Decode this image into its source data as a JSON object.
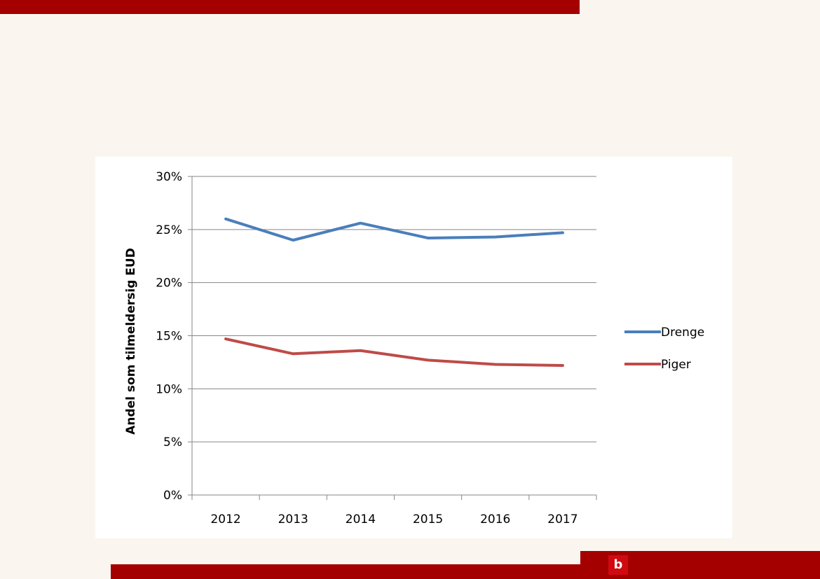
{
  "logo": {
    "text": "b"
  },
  "colors": {
    "bar": "#a50000",
    "logo": "#d10a11",
    "background": "#faf5ef"
  },
  "chart_data": {
    "type": "line",
    "title": "",
    "xlabel": "",
    "ylabel": "Andel som tilmeldersig EUD",
    "categories": [
      "2012",
      "2013",
      "2014",
      "2015",
      "2016",
      "2017"
    ],
    "ylim": [
      0,
      30
    ],
    "yticks": [
      "0%",
      "5%",
      "10%",
      "15%",
      "20%",
      "25%",
      "30%"
    ],
    "grid": true,
    "legend": "right",
    "series": [
      {
        "name": "Drenge",
        "color": "#4a7ebb",
        "values": [
          26.0,
          24.0,
          25.6,
          24.2,
          24.3,
          24.7
        ]
      },
      {
        "name": "Piger",
        "color": "#be4b48",
        "values": [
          14.7,
          13.3,
          13.6,
          12.7,
          12.3,
          12.2
        ]
      }
    ]
  }
}
